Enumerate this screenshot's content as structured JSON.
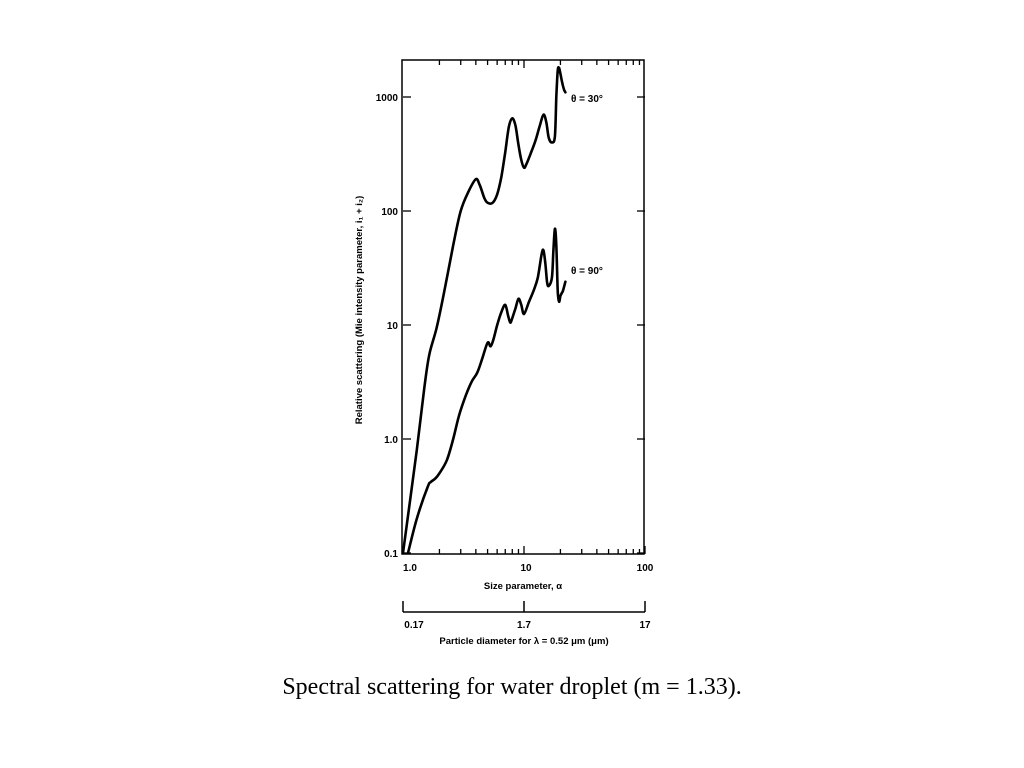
{
  "caption": "Spectral scattering for water droplet (m = 1.33).",
  "chart_data": {
    "type": "line",
    "xlabel": "Size parameter, α",
    "ylabel": "Relative scattering (Mie intensity parameter, i₁ + i₂)",
    "x_scale": "log",
    "y_scale": "log",
    "xlim": [
      1,
      100
    ],
    "ylim": [
      0.1,
      2000
    ],
    "x_ticks": [
      1,
      10,
      100
    ],
    "x_tick_labels": [
      "1.0",
      "10",
      "100"
    ],
    "y_ticks": [
      0.1,
      1,
      10,
      100,
      1000
    ],
    "y_tick_labels": [
      "0.1",
      "1.0",
      "10",
      "100",
      "1000"
    ],
    "secondary_axis": {
      "label": "Particle diameter for λ = 0.52 μm (μm)",
      "ticks": [
        1,
        10,
        100
      ],
      "tick_labels": [
        "0.17",
        "1.7",
        "17"
      ]
    },
    "series": [
      {
        "name": "θ = 30°",
        "x": [
          1.0,
          1.3,
          1.5,
          1.65,
          1.9,
          2.2,
          2.6,
          3.0,
          3.5,
          4.0,
          4.3,
          4.7,
          5.0,
          5.5,
          6.0,
          6.5,
          7.0,
          7.5,
          8.0,
          8.5,
          9.0,
          9.5,
          10.0,
          10.5,
          11.5,
          12.5,
          13.5,
          14.5,
          15.3,
          16.0,
          17.0,
          18.0,
          18.5,
          19.0,
          19.5,
          20.0,
          20.5,
          21.0,
          21.5,
          22.0
        ],
        "y": [
          0.1,
          0.8,
          2.8,
          5.5,
          9.5,
          20,
          50,
          100,
          150,
          190,
          170,
          130,
          118,
          118,
          140,
          200,
          330,
          550,
          650,
          560,
          380,
          280,
          240,
          260,
          330,
          420,
          560,
          700,
          600,
          440,
          400,
          450,
          1000,
          1700,
          1800,
          1600,
          1400,
          1250,
          1150,
          1100
        ]
      },
      {
        "name": "θ = 90°",
        "x": [
          1.1,
          1.3,
          1.6,
          1.7,
          1.85,
          2.0,
          2.3,
          2.6,
          2.9,
          3.3,
          3.7,
          4.1,
          4.5,
          5.0,
          5.3,
          5.6,
          6.0,
          6.5,
          7.0,
          7.4,
          7.7,
          8.0,
          8.5,
          9.0,
          9.5,
          10.0,
          11.0,
          12.0,
          13.0,
          14.0,
          14.5,
          15.0,
          15.5,
          16.0,
          17.0,
          17.5,
          18.0,
          18.5,
          19.0,
          19.5,
          20.0,
          20.5,
          21.0,
          22.0
        ],
        "y": [
          0.1,
          0.2,
          0.38,
          0.42,
          0.45,
          0.5,
          0.65,
          1.0,
          1.6,
          2.4,
          3.2,
          3.8,
          5.0,
          7.0,
          6.5,
          7.5,
          10,
          13,
          15,
          12,
          10.5,
          11.5,
          14,
          17,
          15,
          12.5,
          16,
          20,
          26,
          42,
          45,
          35,
          24,
          22,
          26,
          45,
          70,
          50,
          20,
          16,
          18,
          19,
          20,
          24
        ]
      }
    ],
    "annotations": [
      "θ = 30°",
      "θ = 90°"
    ]
  }
}
